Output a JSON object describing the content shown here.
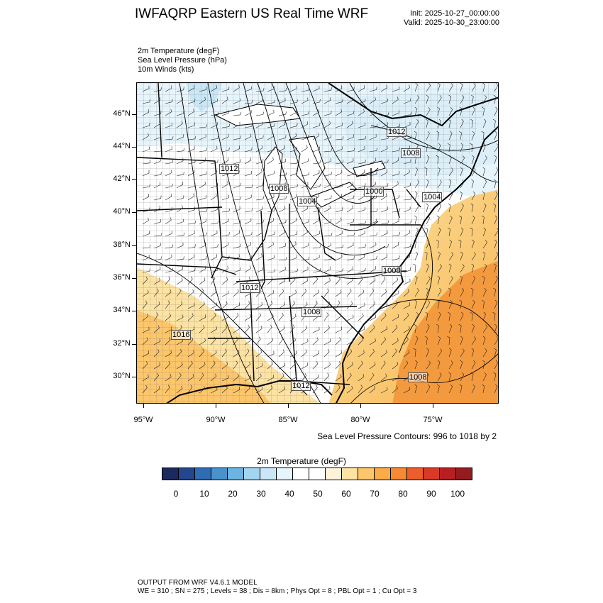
{
  "header": {
    "title": "IWFAQRP Eastern US Real Time WRF",
    "init": "Init: 2025-10-27_00:00:00",
    "valid": "Valid: 2025-10-30_23:00:00"
  },
  "fields": [
    "2m Temperature   (degF)",
    "Sea Level Pressure   (hPa)",
    "10m Winds   (kts)"
  ],
  "map": {
    "lat_labels": [
      "46°N",
      "44°N",
      "42°N",
      "40°N",
      "38°N",
      "36°N",
      "34°N",
      "32°N",
      "30°N"
    ],
    "lon_labels": [
      "95°W",
      "90°W",
      "85°W",
      "80°W",
      "75°W"
    ],
    "slp_labels": [
      "1012",
      "1008",
      "1012",
      "1008",
      "1004",
      "1000",
      "1004",
      "1008",
      "1012",
      "1008",
      "1016",
      "1012",
      "1008"
    ],
    "colors": {
      "cold": "#d6ecf8",
      "warm": "#f7b54f",
      "hot": "#f49a3e"
    }
  },
  "contour_note": "Sea Level Pressure Contours: 996 to 1018 by 2",
  "colorbar": {
    "title": "2m Temperature  (degF)",
    "colors": [
      "#1a2a5e",
      "#23468f",
      "#2f6cb4",
      "#4a92cc",
      "#6cb5e0",
      "#a3d4f0",
      "#c9e7f6",
      "#e6f4fb",
      "#ffffff",
      "#ffffff",
      "#fff4d9",
      "#fde3a3",
      "#fdc66b",
      "#fbab48",
      "#f68a34",
      "#ec5f2c",
      "#d93a26",
      "#b81f22",
      "#941b1e"
    ],
    "labels": [
      "0",
      "10",
      "20",
      "30",
      "40",
      "50",
      "60",
      "70",
      "80",
      "90",
      "100"
    ]
  },
  "footer": {
    "line1": "OUTPUT FROM WRF V4.6.1 MODEL",
    "line2": "WE = 310 ; SN = 275 ; Levels = 38 ; Dis = 8km ; Phys Opt = 8 ; PBL Opt = 1 ; Cu Opt = 3"
  }
}
